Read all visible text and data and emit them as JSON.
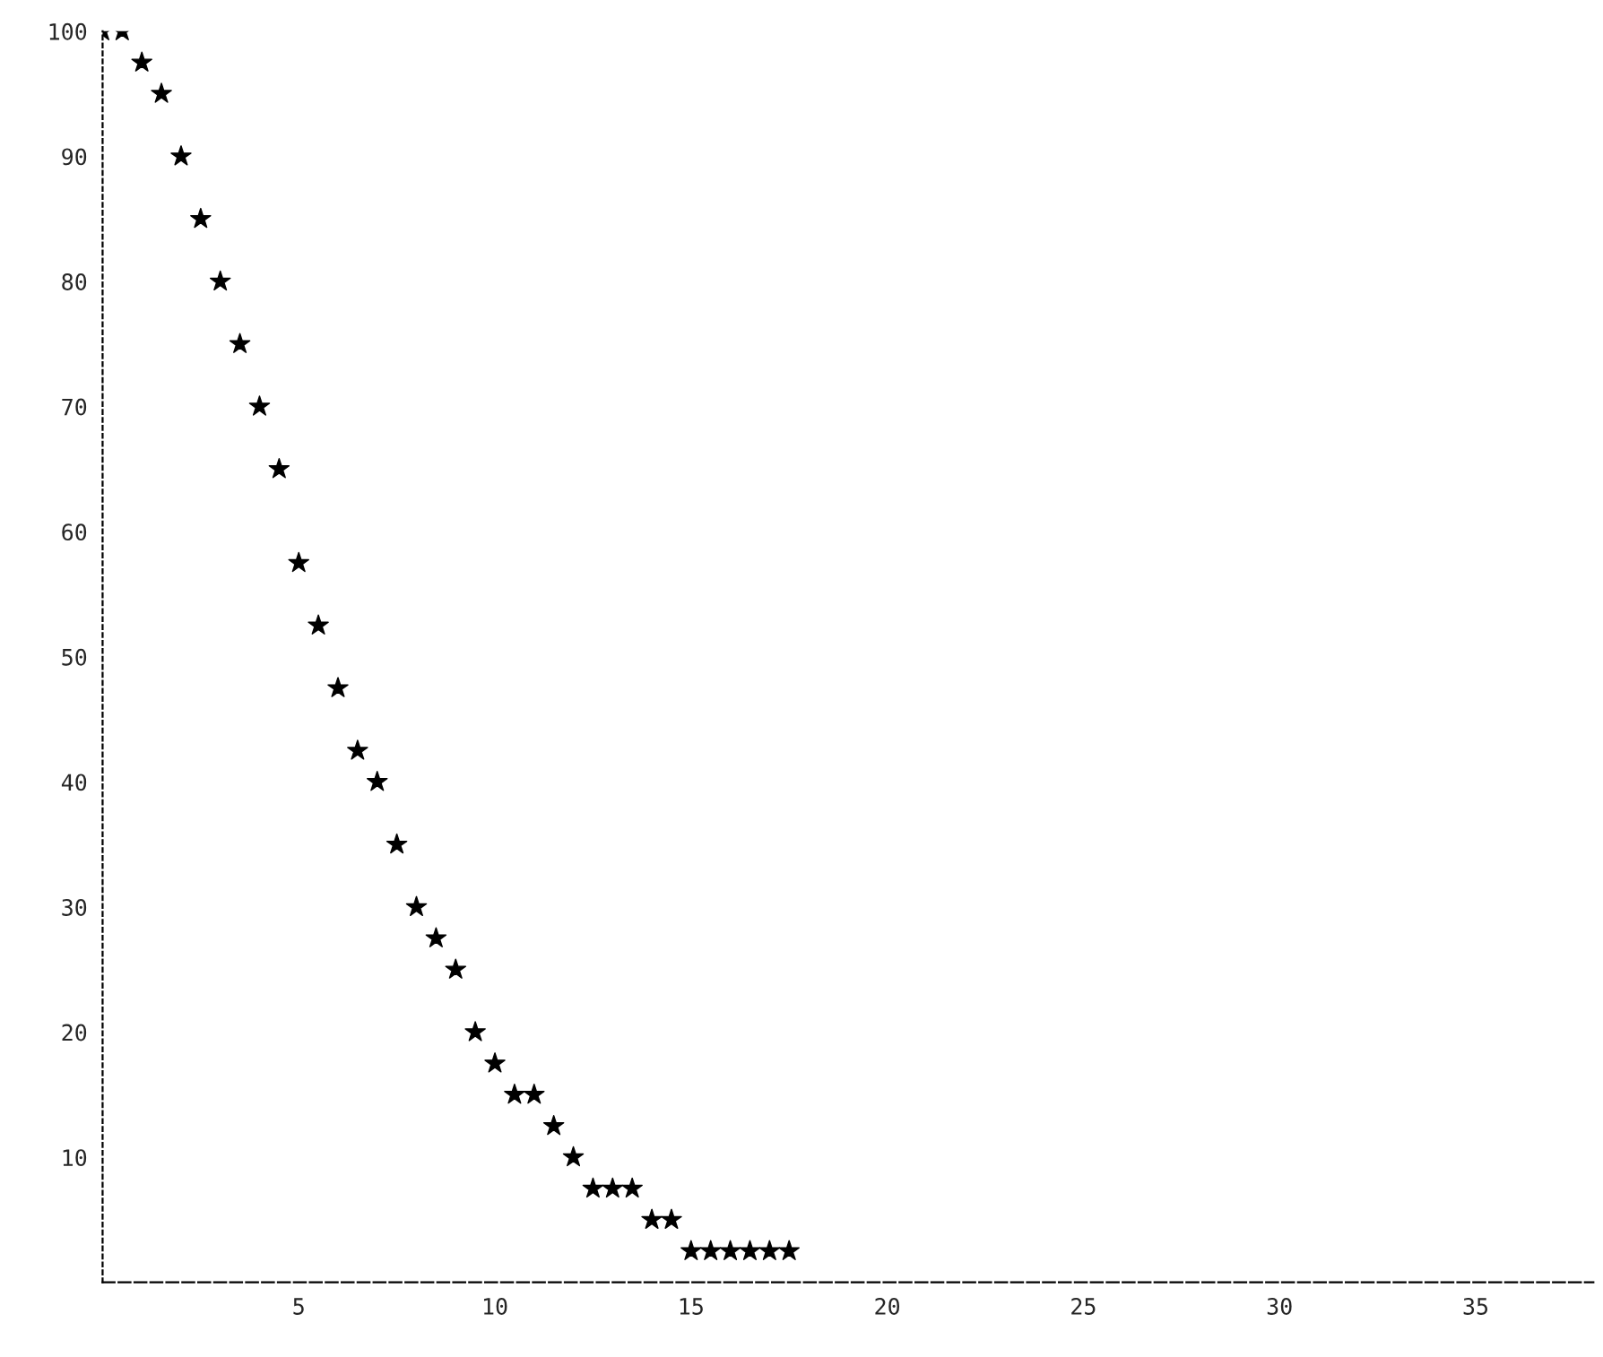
{
  "chart_data": {
    "type": "scatter",
    "marker": "star",
    "grid": false,
    "legend": false,
    "x": [
      0,
      0.5,
      1,
      1.5,
      2,
      2.5,
      3,
      3.5,
      4,
      4.5,
      5,
      5.5,
      6,
      6.5,
      7,
      7.5,
      8,
      8.5,
      9,
      9.5,
      10,
      10.5,
      11,
      11.5,
      12,
      12.5,
      13,
      13.5,
      14,
      14.5,
      15,
      15.5,
      16,
      16.5,
      17,
      17.5
    ],
    "series": [
      {
        "color": "#000000",
        "values": [
          100,
          100,
          97.5,
          95,
          90,
          85,
          80,
          75,
          70,
          65,
          57.5,
          52.5,
          47.5,
          42.5,
          40,
          35,
          30,
          27.5,
          25,
          20,
          17.5,
          15,
          15,
          12.5,
          10,
          7.5,
          7.5,
          7.5,
          5,
          5,
          2.5,
          2.5,
          2.5,
          2.5,
          2.5,
          2.5
        ]
      }
    ],
    "xlim": [
      0,
      38
    ],
    "xticks": [
      5,
      10,
      15,
      20,
      25,
      30,
      35
    ],
    "ylim": [
      0,
      100
    ],
    "yticks": [
      10,
      20,
      30,
      40,
      50,
      60,
      70,
      80,
      90,
      100
    ]
  }
}
